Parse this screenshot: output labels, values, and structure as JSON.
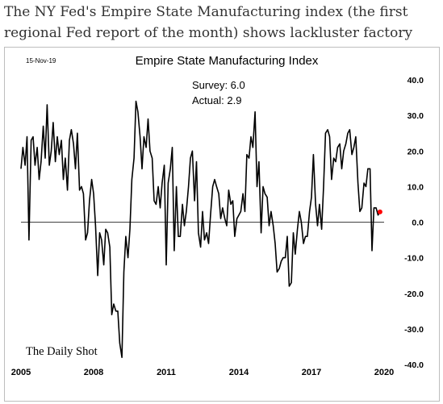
{
  "caption": "The NY Fed's Empire State Manufacturing index (the first regional Fed report of the month) shows lackluster factory activity in November.",
  "chart_data": {
    "type": "line",
    "title": "Empire State Manufacturing Index",
    "date_label": "15-Nov-19",
    "annotations": [
      "Survey: 6.0",
      "Actual:  2.9"
    ],
    "watermark": "The Daily Shot",
    "xlim": [
      2005.0,
      2020.0
    ],
    "ylim": [
      -40,
      40
    ],
    "y_ticks": [
      40,
      30,
      20,
      10,
      0,
      -10,
      -20,
      -30,
      -40
    ],
    "y_tick_labels": [
      "40.0",
      "30.0",
      "20.0",
      "10.0",
      "0.0",
      "-10.0",
      "-20.0",
      "-30.0",
      "-40.0"
    ],
    "x_ticks": [
      2005,
      2008,
      2011,
      2014,
      2017,
      2020
    ],
    "x_tick_labels": [
      "2005",
      "2008",
      "2011",
      "2014",
      "2017",
      "2020"
    ],
    "series_color": "#000000",
    "last_point_color": "#ff0000",
    "series": [
      {
        "x": [
          2005.0,
          2005.08,
          2005.17,
          2005.25,
          2005.33,
          2005.42,
          2005.5,
          2005.58,
          2005.67,
          2005.75,
          2005.83,
          2005.92,
          2006.0,
          2006.08,
          2006.17,
          2006.25,
          2006.33,
          2006.42,
          2006.5,
          2006.58,
          2006.67,
          2006.75,
          2006.83,
          2006.92,
          2007.0,
          2007.08,
          2007.17,
          2007.25,
          2007.33,
          2007.42,
          2007.5,
          2007.58,
          2007.67,
          2007.75,
          2007.83,
          2007.92,
          2008.0,
          2008.08,
          2008.17,
          2008.25,
          2008.33,
          2008.42,
          2008.5,
          2008.58,
          2008.67,
          2008.75,
          2008.83,
          2008.92,
          2009.0,
          2009.08,
          2009.17,
          2009.25,
          2009.33,
          2009.42,
          2009.5,
          2009.58,
          2009.67,
          2009.75,
          2009.83,
          2009.92,
          2010.0,
          2010.08,
          2010.17,
          2010.25,
          2010.33,
          2010.42,
          2010.5,
          2010.58,
          2010.67,
          2010.75,
          2010.83,
          2010.92,
          2011.0,
          2011.08,
          2011.17,
          2011.25,
          2011.33,
          2011.42,
          2011.5,
          2011.58,
          2011.67,
          2011.75,
          2011.83,
          2011.92,
          2012.0,
          2012.08,
          2012.17,
          2012.25,
          2012.33,
          2012.42,
          2012.5,
          2012.58,
          2012.67,
          2012.75,
          2012.83,
          2012.92,
          2013.0,
          2013.08,
          2013.17,
          2013.25,
          2013.33,
          2013.42,
          2013.5,
          2013.58,
          2013.67,
          2013.75,
          2013.83,
          2013.92,
          2014.0,
          2014.08,
          2014.17,
          2014.25,
          2014.33,
          2014.42,
          2014.5,
          2014.58,
          2014.67,
          2014.75,
          2014.83,
          2014.92,
          2015.0,
          2015.08,
          2015.17,
          2015.25,
          2015.33,
          2015.42,
          2015.5,
          2015.58,
          2015.67,
          2015.75,
          2015.83,
          2015.92,
          2016.0,
          2016.08,
          2016.17,
          2016.25,
          2016.33,
          2016.42,
          2016.5,
          2016.58,
          2016.67,
          2016.75,
          2016.83,
          2016.92,
          2017.0,
          2017.08,
          2017.17,
          2017.25,
          2017.33,
          2017.42,
          2017.5,
          2017.58,
          2017.67,
          2017.75,
          2017.83,
          2017.92,
          2018.0,
          2018.08,
          2018.17,
          2018.25,
          2018.33,
          2018.42,
          2018.5,
          2018.58,
          2018.67,
          2018.75,
          2018.83,
          2018.92,
          2019.0,
          2019.08,
          2019.17,
          2019.25,
          2019.33,
          2019.42,
          2019.5,
          2019.58,
          2019.67,
          2019.75,
          2019.83
        ],
        "y": [
          15,
          21,
          16,
          24,
          -5,
          23,
          24,
          16,
          21,
          12,
          17,
          27,
          18,
          33,
          16,
          20,
          28,
          17,
          24,
          19,
          23,
          12,
          18,
          9,
          23,
          26,
          22,
          15,
          25,
          9,
          10,
          8,
          -5,
          -3,
          6,
          12,
          8,
          -1,
          -15,
          -3,
          -5,
          -12,
          -2,
          -3,
          -7,
          -26,
          -23,
          -25,
          -25,
          -34,
          -38,
          -14,
          -4,
          -10,
          -2,
          12,
          18,
          34,
          31,
          24,
          15,
          24,
          21,
          29,
          20,
          18,
          6,
          5,
          10,
          4,
          11,
          16,
          -12,
          11,
          15,
          21,
          -8,
          10,
          -4,
          -4,
          5,
          -1,
          3,
          10,
          18,
          20,
          6,
          17,
          -3,
          -7,
          3,
          -5,
          -3,
          -6,
          2,
          10,
          12,
          10,
          8,
          1,
          4,
          1,
          -1,
          9,
          5,
          6,
          -4,
          1,
          2,
          3,
          8,
          3,
          19,
          18,
          24,
          21,
          31,
          10,
          17,
          -3,
          10,
          8,
          7,
          -1,
          3,
          -1,
          -6,
          -14,
          -13,
          -11,
          -10,
          -10,
          -4,
          -18,
          -17,
          -3,
          -9,
          -2,
          3,
          0,
          -6,
          -4,
          -4,
          3,
          7,
          19,
          5,
          -1,
          5,
          -2,
          10,
          25,
          26,
          24,
          12,
          18,
          17,
          21,
          22,
          15,
          20,
          22,
          25,
          26,
          19,
          21,
          24,
          11,
          3,
          4,
          11,
          10,
          15,
          15,
          -8,
          4,
          4,
          2,
          2.9
        ]
      }
    ]
  }
}
